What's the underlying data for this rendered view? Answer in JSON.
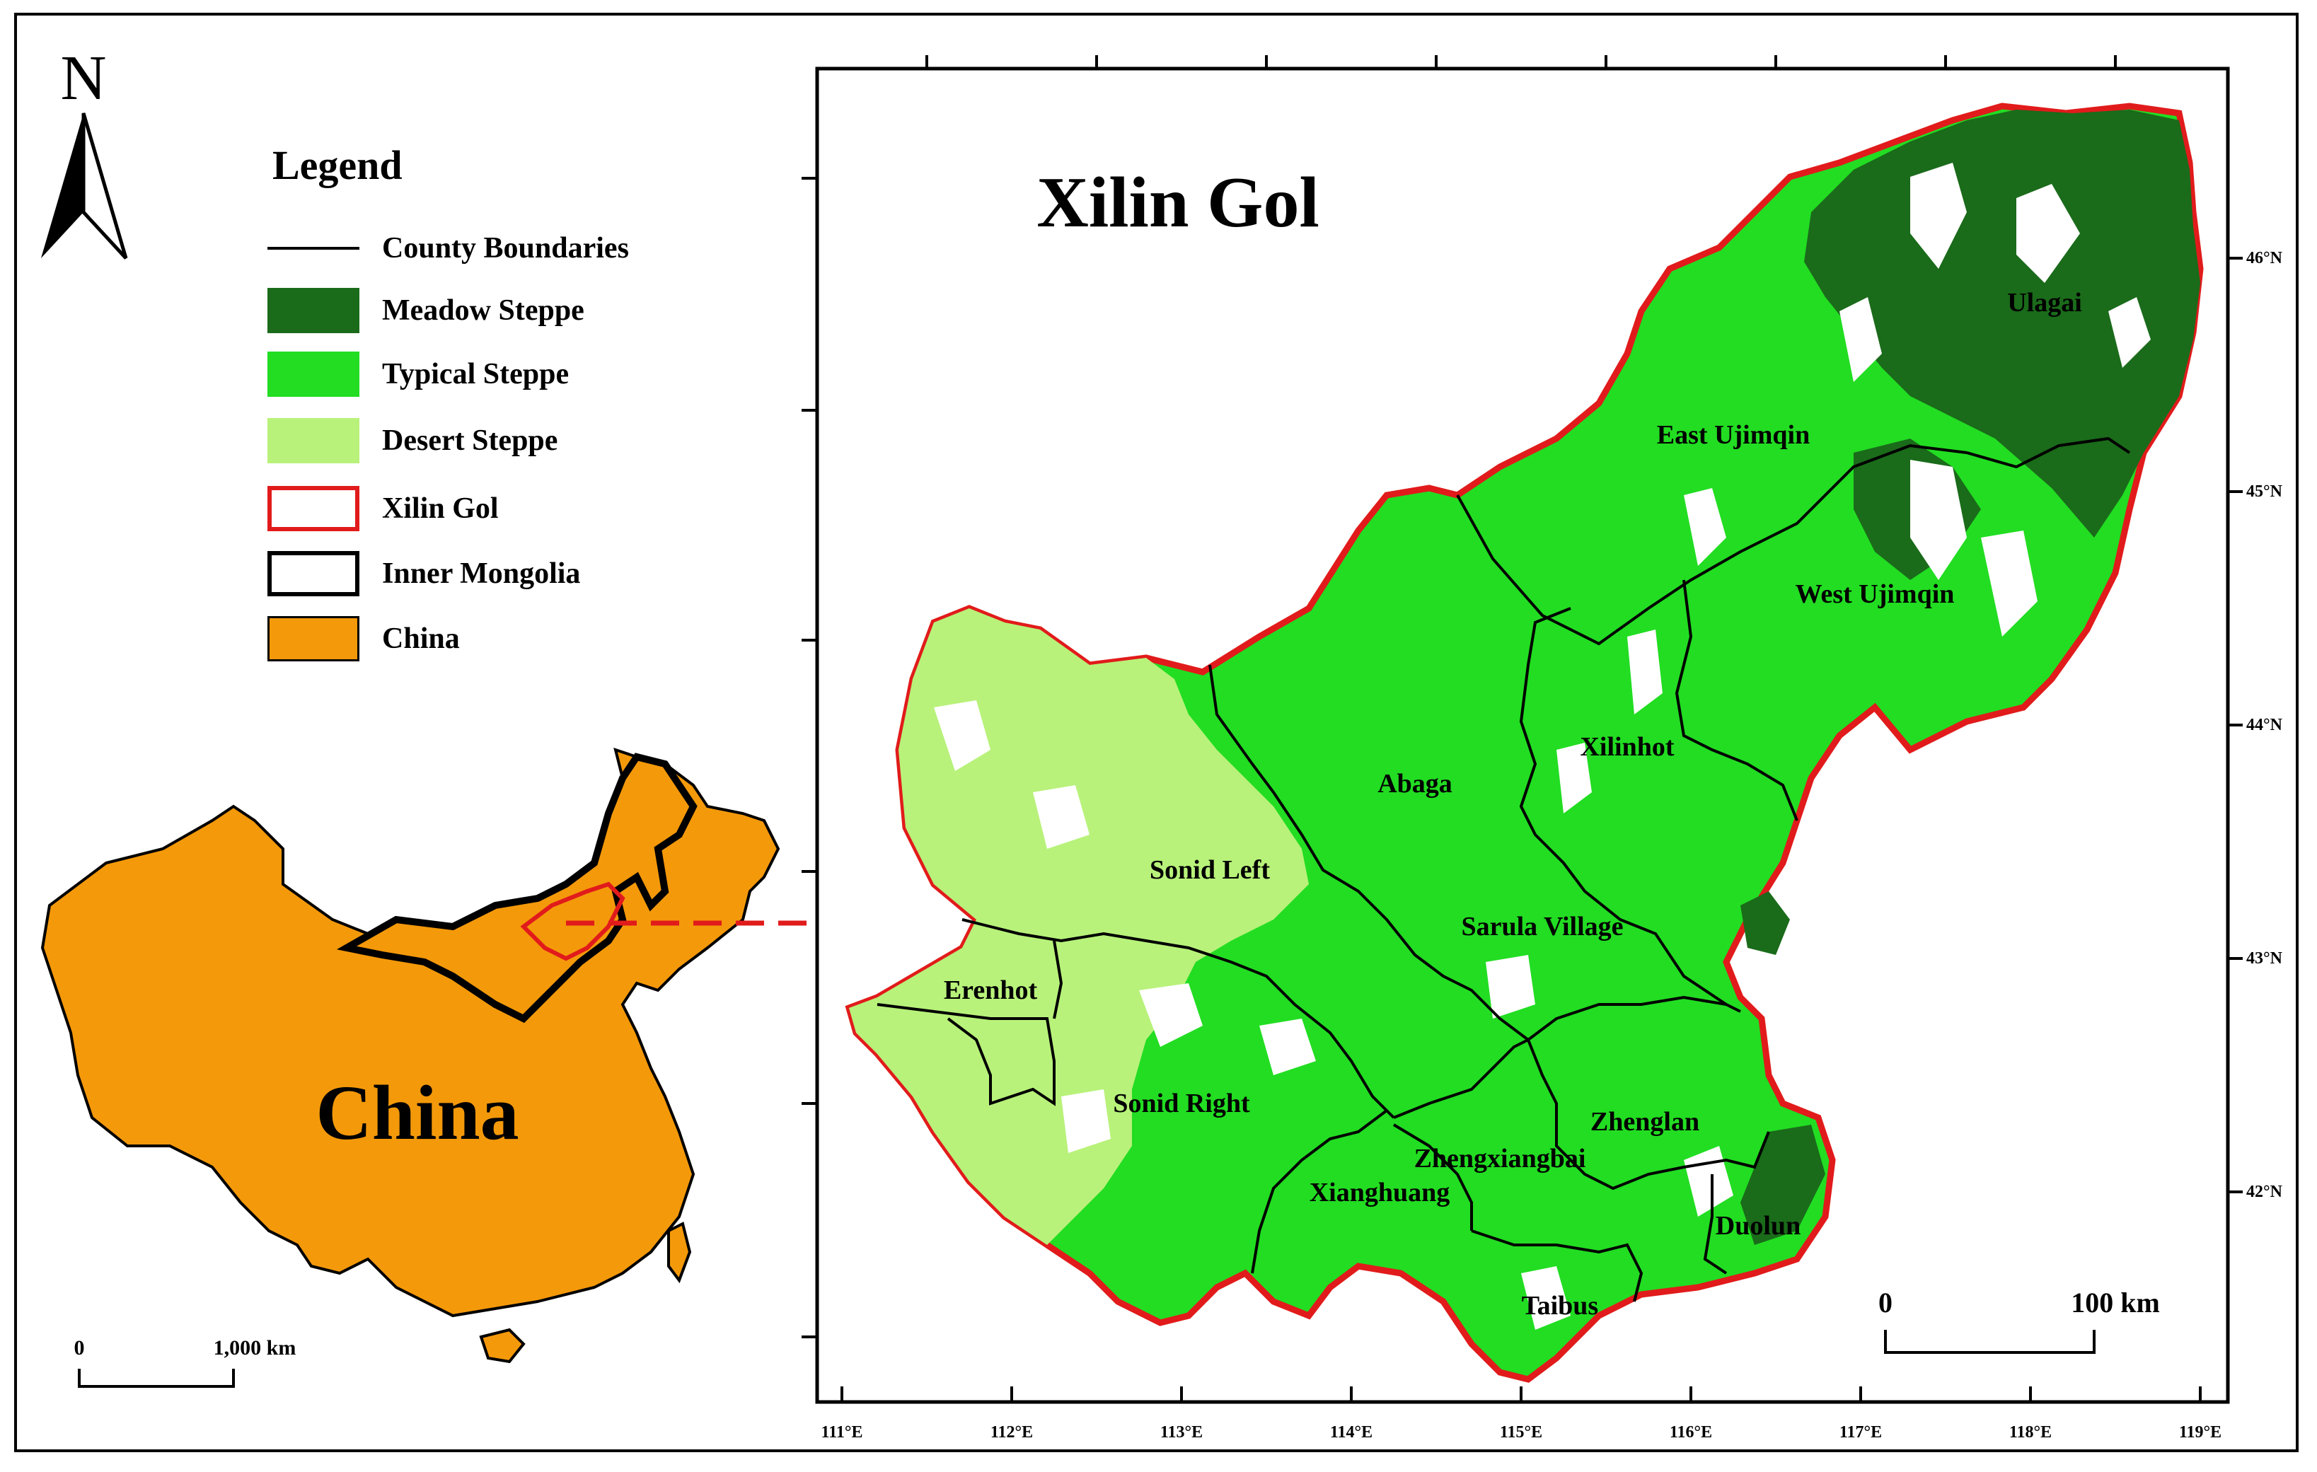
{
  "north_arrow": {
    "label": "N"
  },
  "legend": {
    "title": "Legend",
    "items": [
      {
        "label": "County Boundaries",
        "kind": "line",
        "color": "#000000"
      },
      {
        "label": "Meadow Steppe",
        "kind": "fill",
        "color": "#1a6b1a"
      },
      {
        "label": "Typical Steppe",
        "kind": "fill",
        "color": "#22dd22"
      },
      {
        "label": "Desert Steppe",
        "kind": "fill",
        "color": "#b8f27a"
      },
      {
        "label": "Xilin Gol",
        "kind": "outline",
        "color": "#e11b1b"
      },
      {
        "label": "Inner Mongolia",
        "kind": "outline",
        "color": "#000000"
      },
      {
        "label": "China",
        "kind": "fill",
        "color": "#f4990a"
      }
    ]
  },
  "china_map": {
    "label": "China",
    "scale_bar": {
      "start": "0",
      "end": "1,000 km"
    }
  },
  "main_map": {
    "title": "Xilin Gol",
    "scale_bar": {
      "start": "0",
      "end": "100 km"
    },
    "longitude_labels": [
      "111°E",
      "112°E",
      "113°E",
      "114°E",
      "115°E",
      "116°E",
      "117°E",
      "118°E",
      "119°E"
    ],
    "latitude_labels": [
      "46°N",
      "45°N",
      "44°N",
      "43°N",
      "42°N"
    ],
    "counties": [
      "Ulagai",
      "East Ujimqin",
      "West Ujimqin",
      "Abaga",
      "Xilinhot",
      "Sonid Left",
      "Sarula Village",
      "Erenhot",
      "Sonid Right",
      "Zhenglan",
      "Zhengxiangbai",
      "Xianghuang",
      "Duolun",
      "Taibus"
    ]
  },
  "colors": {
    "meadow": "#1a6b1a",
    "typical": "#22dd22",
    "desert": "#b8f27a",
    "xilin_outline": "#e11b1b",
    "china": "#f4990a",
    "arrow": "#e11b1b"
  }
}
